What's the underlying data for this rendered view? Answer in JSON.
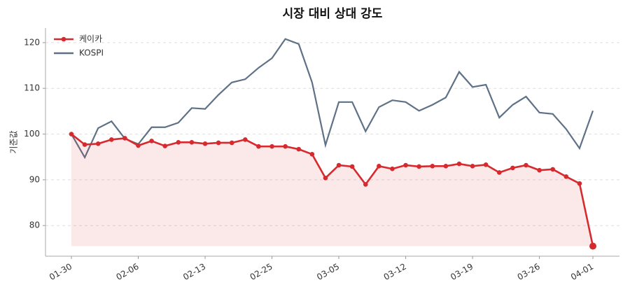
{
  "chart_data": {
    "type": "line",
    "title": "시장 대비 상대 강도",
    "ylabel": "기준값",
    "categories": [
      "01-30",
      null,
      null,
      null,
      null,
      "02-06",
      null,
      null,
      null,
      null,
      "02-13",
      null,
      null,
      null,
      null,
      "02-25",
      null,
      null,
      null,
      null,
      "03-05",
      null,
      null,
      null,
      null,
      "03-12",
      null,
      null,
      null,
      null,
      "03-19",
      null,
      null,
      null,
      null,
      "03-26",
      null,
      null,
      null,
      "04-01"
    ],
    "series": [
      {
        "name": "케이카",
        "color": "#d62a2e",
        "area": true,
        "markers": true,
        "values": [
          100,
          97.7,
          97.9,
          98.8,
          99.1,
          97.5,
          98.5,
          97.4,
          98.2,
          98.2,
          97.9,
          98.1,
          98.1,
          98.8,
          97.3,
          97.3,
          97.3,
          96.7,
          95.6,
          90.4,
          93.2,
          92.9,
          89.0,
          93.0,
          92.4,
          93.2,
          92.9,
          93.0,
          93.0,
          93.5,
          93.0,
          93.3,
          91.6,
          92.6,
          93.2,
          92.1,
          92.3,
          90.7,
          89.2,
          75.5
        ]
      },
      {
        "name": "KOSPI",
        "color": "#5f7186",
        "area": false,
        "markers": false,
        "values": [
          100,
          94.9,
          101.3,
          102.8,
          99.0,
          97.8,
          101.5,
          101.5,
          102.5,
          105.7,
          105.5,
          108.6,
          111.3,
          112.0,
          114.5,
          116.6,
          120.8,
          119.7,
          111.3,
          97.6,
          107.0,
          107.0,
          100.6,
          105.9,
          107.4,
          107.0,
          105.1,
          106.4,
          108.0,
          113.6,
          110.3,
          110.8,
          103.6,
          106.4,
          108.2,
          104.7,
          104.4,
          101.1,
          96.9,
          105.1
        ]
      }
    ],
    "ylim": [
      73.3,
      123.2
    ],
    "yticks": [
      80,
      90,
      100,
      110,
      120
    ],
    "grid": true,
    "legend": "upper-left"
  }
}
